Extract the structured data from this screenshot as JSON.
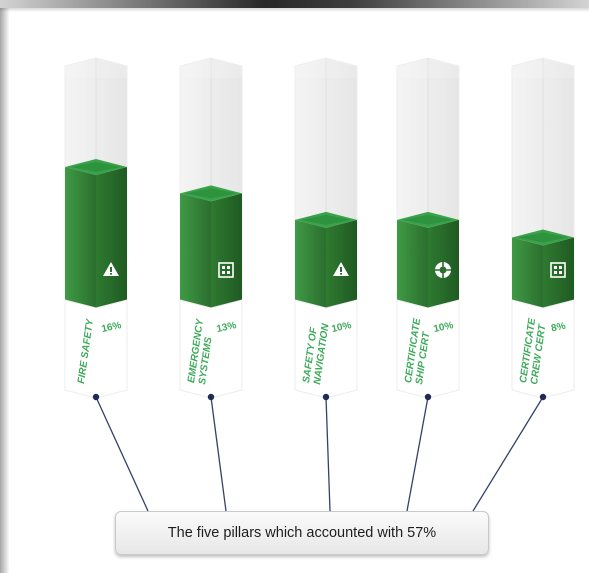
{
  "caption": "The five pillars which accounted with 57%",
  "colors": {
    "bar_front": "#2e7d32",
    "bar_side": "#256a2a",
    "bar_top": "#3aa34a",
    "label_green": "#3daa5a",
    "leader_line": "#34406a"
  },
  "chart_data": {
    "type": "bar",
    "style": "3d-column",
    "categories": [
      [
        "FIRE SAFETY"
      ],
      [
        "EMERGENCY",
        "SYSTEMS"
      ],
      [
        "SAFETY OF",
        "NAVIGATION"
      ],
      [
        "CERTIFICATE",
        "SHIP CERT"
      ],
      [
        "CERTIFICATE",
        "CREW CERT"
      ]
    ],
    "values": [
      16,
      13,
      10,
      10,
      8
    ],
    "value_labels": [
      "16%",
      "13%",
      "10%",
      "10%",
      "8%"
    ],
    "icons": [
      "warning-triangle-icon",
      "control-panel-icon",
      "warning-triangle-icon",
      "lifebuoy-icon",
      "control-panel-icon"
    ],
    "ylim": [
      0,
      27
    ],
    "total_label": "57%"
  }
}
